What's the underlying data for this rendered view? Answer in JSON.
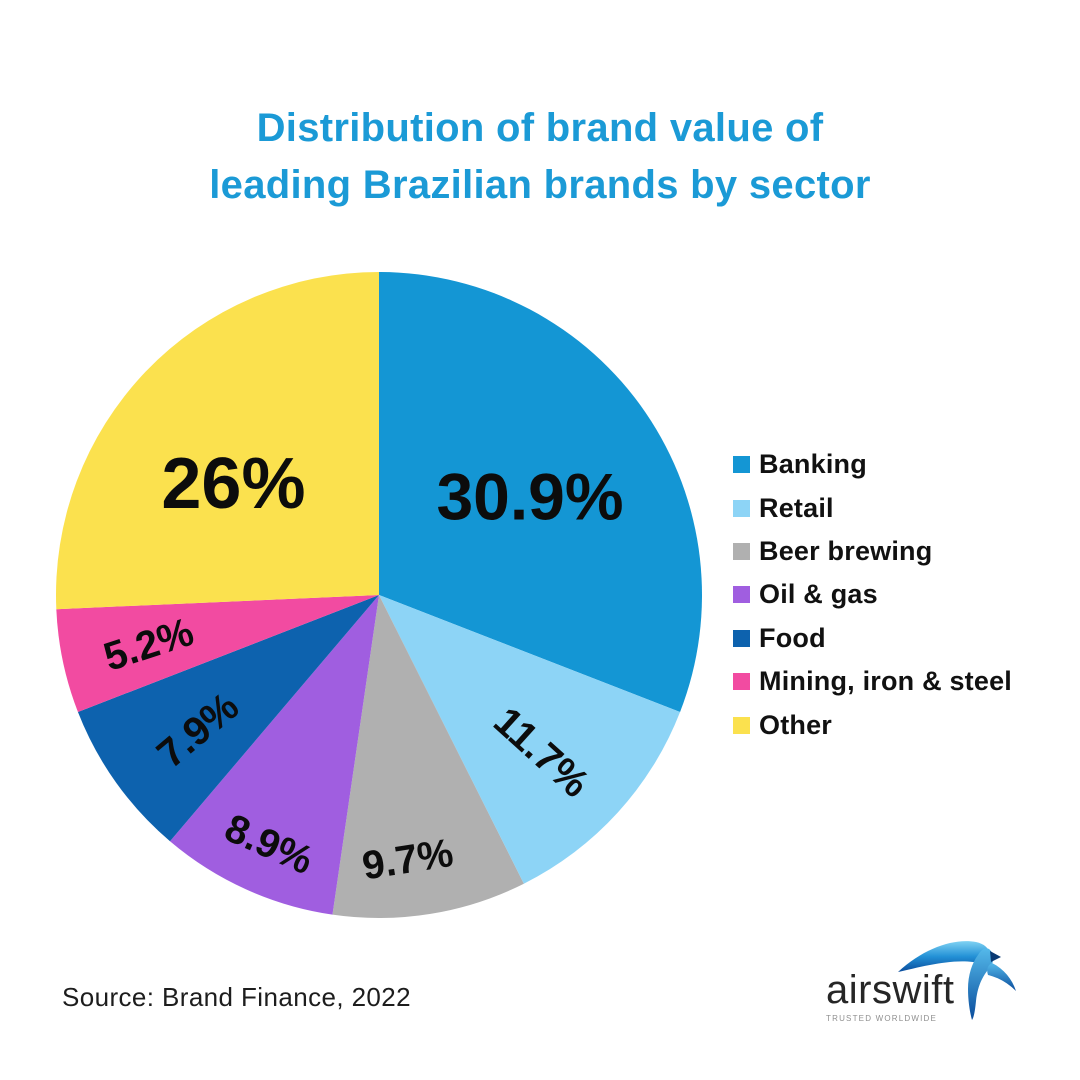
{
  "title": {
    "line1": "Distribution of brand value of",
    "line2": "leading Brazilian brands by sector"
  },
  "chart_data": {
    "type": "pie",
    "title": "Distribution of brand value of leading Brazilian brands by sector",
    "start_angle_deg": 0,
    "direction": "clockwise",
    "legend_position": "right",
    "values_are_percent_of": 100,
    "last_slice_fills_remainder": true,
    "slices": [
      {
        "label": "Banking",
        "value": 30.9,
        "display": "30.9%",
        "color": "#1496d4",
        "label_layout": {
          "r": 0.56,
          "rotation": 0,
          "size": 66,
          "angle_offset": 1
        }
      },
      {
        "label": "Retail",
        "value": 11.7,
        "display": "11.7%",
        "color": "#8dd4f6",
        "label_layout": {
          "r": 0.7,
          "rotation": 42,
          "size": 40,
          "angle_offset": 1.5
        }
      },
      {
        "label": "Beer brewing",
        "value": 9.7,
        "display": "9.7%",
        "color": "#b0b0b0",
        "label_layout": {
          "r": 0.82,
          "rotation": -9,
          "size": 40,
          "angle_offset": 3
        }
      },
      {
        "label": "Oil & gas",
        "value": 8.9,
        "display": "8.9%",
        "color": "#a05ee0",
        "label_layout": {
          "r": 0.84,
          "rotation": 24,
          "size": 40,
          "angle_offset": -0.5
        }
      },
      {
        "label": "Food",
        "value": 7.9,
        "display": "7.9%",
        "color": "#0d62ae",
        "label_layout": {
          "r": 0.7,
          "rotation": -40,
          "size": 40,
          "angle_offset": -1
        }
      },
      {
        "label": "Mining, iron & steel",
        "value": 5.2,
        "display": "5.2%",
        "color": "#f24ba1",
        "label_layout": {
          "r": 0.73,
          "rotation": -18,
          "size": 40,
          "angle_offset": 0
        }
      },
      {
        "label": "Other",
        "value": 26,
        "display": "26%",
        "color": "#fbe14e",
        "label_layout": {
          "r": 0.57,
          "rotation": 0,
          "size": 72,
          "angle_offset": -6
        }
      }
    ]
  },
  "source": "Source: Brand Finance, 2022",
  "logo": {
    "brand": "airswift",
    "tagline": "TRUSTED WORLDWIDE"
  }
}
